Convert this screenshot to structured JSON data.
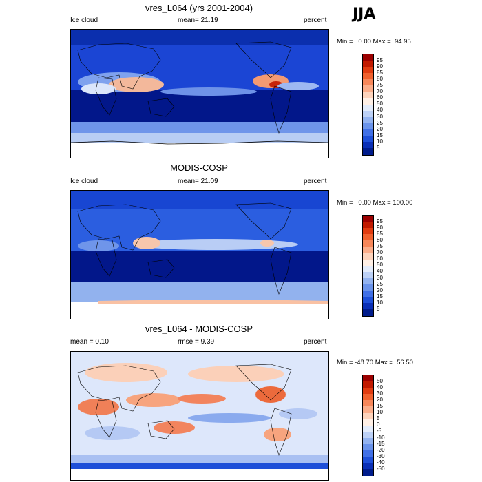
{
  "season": "JJA",
  "panels": [
    {
      "title": "vres_L064 (yrs 2001-2004)",
      "left": "Ice cloud",
      "center": "mean=  21.19",
      "right": "percent",
      "minmax": "Min =   0.00 Max =  94.95",
      "colorbar": {
        "labels": [
          "95",
          "90",
          "85",
          "80",
          "75",
          "70",
          "60",
          "50",
          "40",
          "30",
          "25",
          "20",
          "15",
          "10",
          "5"
        ],
        "colors": [
          "#9b0000",
          "#c11a00",
          "#e03b10",
          "#f0612e",
          "#f7875a",
          "#fbad8a",
          "#fdd3bc",
          "#fff0e6",
          "#e3ecfb",
          "#bdd1f6",
          "#93b3f0",
          "#6a93ea",
          "#4170e6",
          "#1e4fd8",
          "#0a2fb6",
          "#001c8c"
        ]
      }
    },
    {
      "title": "MODIS-COSP",
      "left": "Ice cloud",
      "center": "mean=  21.09",
      "right": "percent",
      "minmax": "Min =   0.00 Max = 100.00",
      "colorbar": {
        "labels": [
          "95",
          "90",
          "85",
          "80",
          "75",
          "70",
          "60",
          "50",
          "40",
          "30",
          "25",
          "20",
          "15",
          "10",
          "5"
        ],
        "colors": [
          "#9b0000",
          "#c11a00",
          "#e03b10",
          "#f0612e",
          "#f7875a",
          "#fbad8a",
          "#fdd3bc",
          "#fff0e6",
          "#e3ecfb",
          "#bdd1f6",
          "#93b3f0",
          "#6a93ea",
          "#4170e6",
          "#1e4fd8",
          "#0a2fb6",
          "#001c8c"
        ]
      }
    },
    {
      "title": "vres_L064 - MODIS-COSP",
      "left": "mean =   0.10",
      "center": "rmse =   9.39",
      "right": "percent",
      "minmax": "Min = -48.70 Max =  56.50",
      "colorbar": {
        "labels": [
          "50",
          "40",
          "30",
          "20",
          "15",
          "10",
          "5",
          "0",
          "-5",
          "-10",
          "-15",
          "-20",
          "-30",
          "-40",
          "-50"
        ],
        "colors": [
          "#9b0000",
          "#c11a00",
          "#e03b10",
          "#f0612e",
          "#f7875a",
          "#fbad8a",
          "#fdd3bc",
          "#fff0e6",
          "#e3ecfb",
          "#bdd1f6",
          "#93b3f0",
          "#6a93ea",
          "#4170e6",
          "#1e4fd8",
          "#0a2fb6",
          "#001c8c"
        ]
      }
    }
  ]
}
